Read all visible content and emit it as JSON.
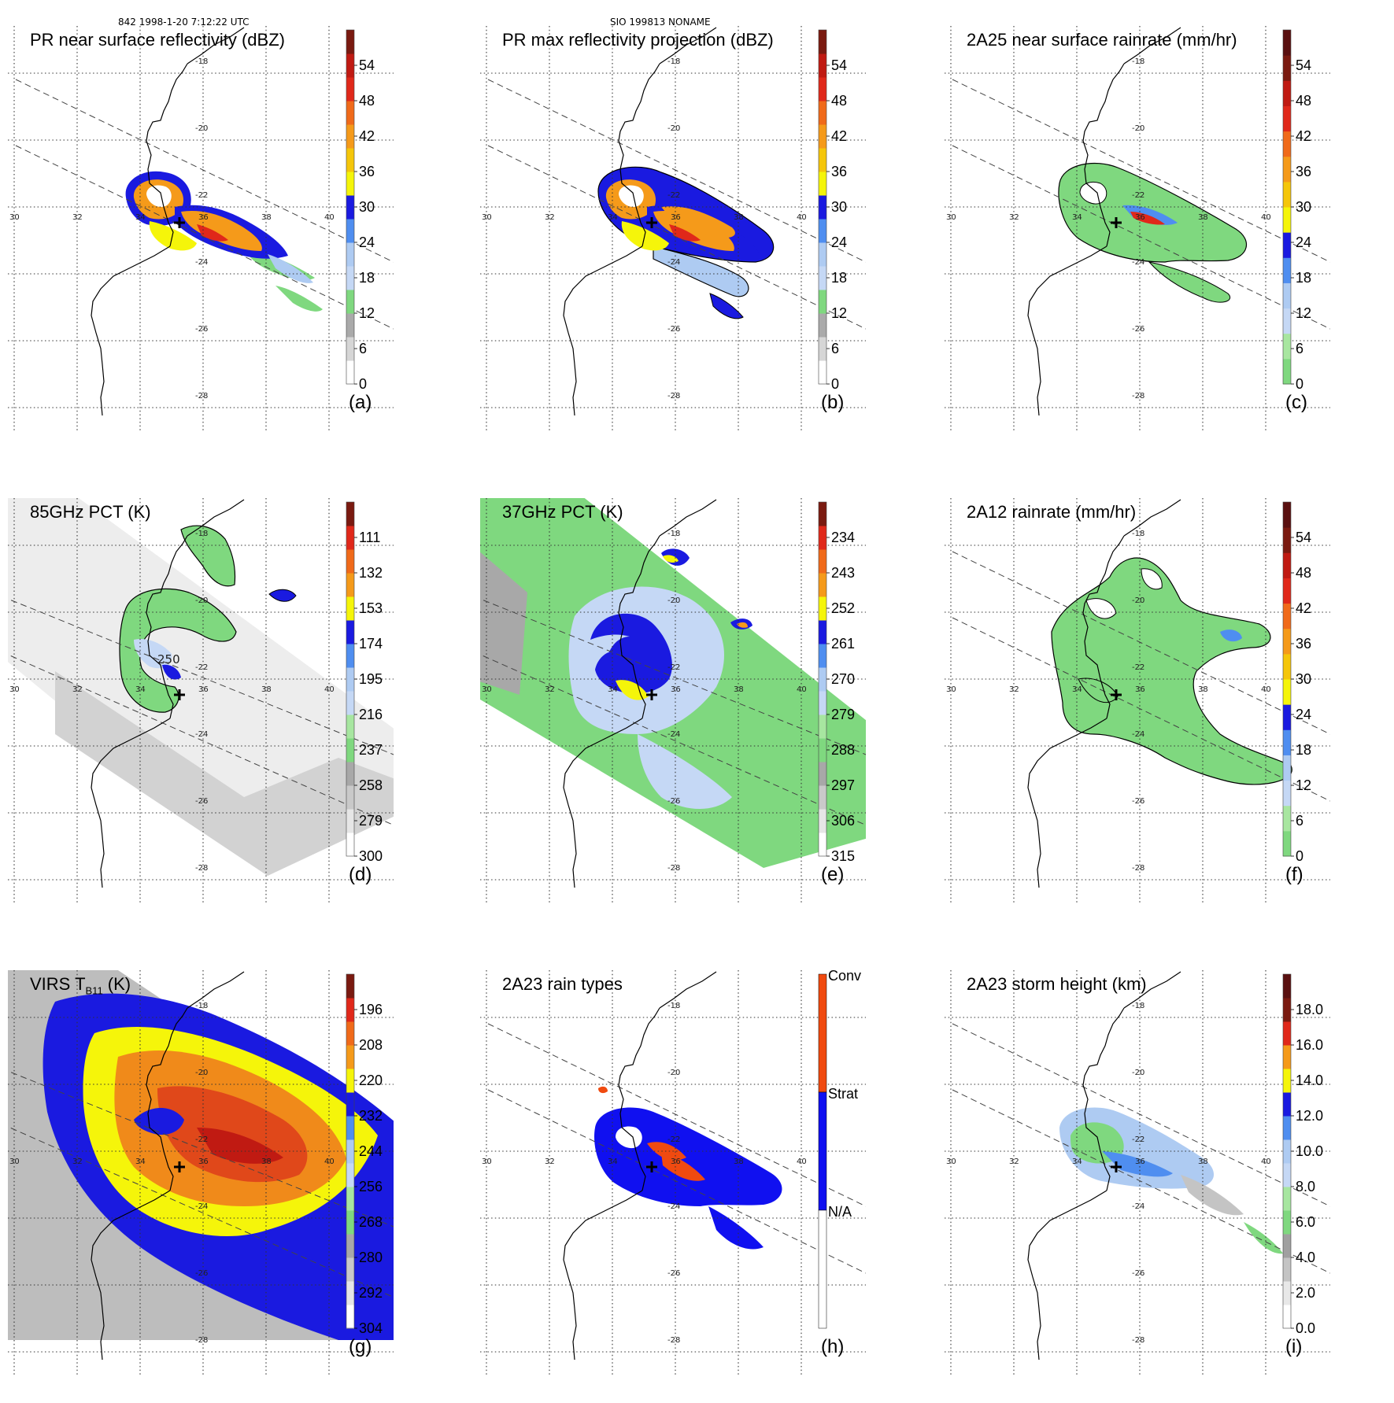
{
  "header": {
    "left": "842 1998-1-20 7:12:22 UTC",
    "center": "SIO 199813 NONAME"
  },
  "colors": {
    "green": "#7fd87f",
    "lightblue": "#aecbf2",
    "midblue": "#4f8ef0",
    "blue": "#1a1ae0",
    "yellow": "#f5f50a",
    "orange": "#f59a1a",
    "red": "#e0281a",
    "darkred": "#7a1a10",
    "gray": "#a8a8a8"
  },
  "map": {
    "lon_ticks": [
      "30",
      "32",
      "34",
      "36",
      "38",
      "40"
    ],
    "lat_ticks": [
      "-18",
      "-20",
      "-22",
      "-24",
      "-26",
      "-28"
    ],
    "extra_label": "250",
    "center_marker": "plus-icon"
  },
  "chart_data": [
    {
      "id": "a",
      "type": "heatmap",
      "title": "PR near surface reflectivity (dBZ)",
      "label": "(a)",
      "colorbar": {
        "ticks": [
          "54",
          "48",
          "42",
          "36",
          "30",
          "24",
          "18",
          "12",
          "6",
          "0"
        ],
        "range": [
          0,
          60
        ],
        "unit": "dBZ"
      }
    },
    {
      "id": "b",
      "type": "heatmap",
      "title": "PR max reflectivity projection (dBZ)",
      "label": "(b)",
      "colorbar": {
        "ticks": [
          "54",
          "48",
          "42",
          "36",
          "30",
          "24",
          "18",
          "12",
          "6",
          "0"
        ],
        "range": [
          0,
          60
        ],
        "unit": "dBZ"
      }
    },
    {
      "id": "c",
      "type": "heatmap",
      "title": "2A25 near surface rainrate (mm/hr)",
      "label": "(c)",
      "colorbar": {
        "ticks": [
          "54",
          "48",
          "42",
          "36",
          "30",
          "24",
          "18",
          "12",
          "6",
          "0"
        ],
        "range": [
          0,
          60
        ],
        "unit": "mm/hr"
      }
    },
    {
      "id": "d",
      "type": "heatmap",
      "title": "85GHz PCT (K)",
      "label": "(d)",
      "colorbar": {
        "ticks": [
          "111",
          "132",
          "153",
          "174",
          "195",
          "216",
          "237",
          "258",
          "279",
          "300"
        ],
        "range": [
          90,
          300
        ],
        "unit": "K"
      }
    },
    {
      "id": "e",
      "type": "heatmap",
      "title": "37GHz PCT (K)",
      "label": "(e)",
      "colorbar": {
        "ticks": [
          "234",
          "243",
          "252",
          "261",
          "270",
          "279",
          "288",
          "297",
          "306",
          "315"
        ],
        "range": [
          225,
          315
        ],
        "unit": "K"
      }
    },
    {
      "id": "f",
      "type": "heatmap",
      "title": "2A12 rainrate (mm/hr)",
      "label": "(f)",
      "colorbar": {
        "ticks": [
          "54",
          "48",
          "42",
          "36",
          "30",
          "24",
          "18",
          "12",
          "6",
          "0"
        ],
        "range": [
          0,
          60
        ],
        "unit": "mm/hr"
      }
    },
    {
      "id": "g",
      "type": "heatmap",
      "title": "VIRS T",
      "title_sub": "B11",
      "title_suffix": " (K)",
      "label": "(g)",
      "colorbar": {
        "ticks": [
          "196",
          "208",
          "220",
          "232",
          "244",
          "256",
          "268",
          "280",
          "292",
          "304"
        ],
        "range": [
          184,
          304
        ],
        "unit": "K"
      }
    },
    {
      "id": "h",
      "type": "heatmap",
      "title": "2A23 rain types",
      "label": "(h)",
      "colorbar": {
        "ticks": [
          "Conv",
          "Strat",
          "N/A"
        ],
        "categories": [
          "N/A",
          "Strat",
          "Conv"
        ]
      }
    },
    {
      "id": "i",
      "type": "heatmap",
      "title": "2A23 storm height (km)",
      "label": "(i)",
      "colorbar": {
        "ticks": [
          "18.0",
          "16.0",
          "14.0",
          "12.0",
          "10.0",
          "8.0",
          "6.0",
          "4.0",
          "2.0",
          "0.0"
        ],
        "range": [
          0,
          20
        ],
        "unit": "km"
      }
    }
  ]
}
